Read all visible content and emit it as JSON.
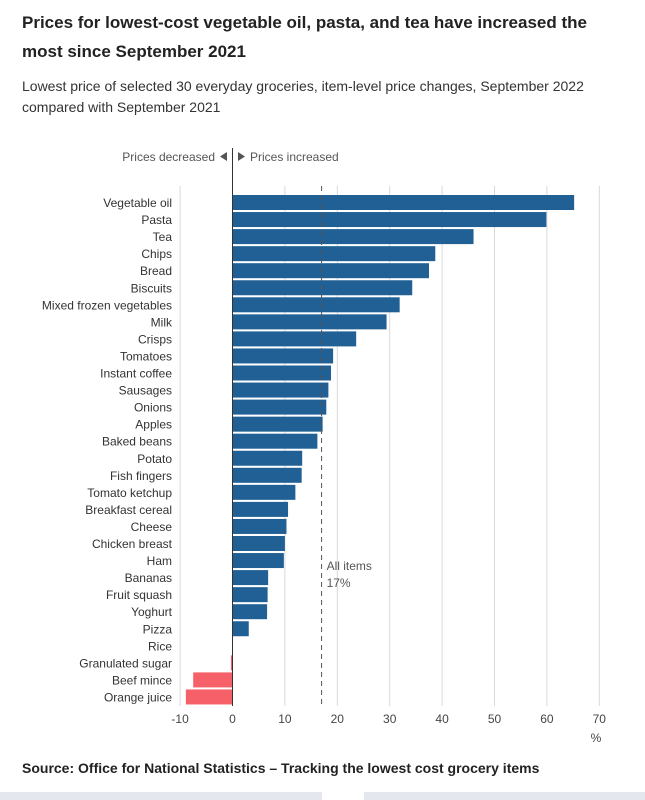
{
  "title": "Prices for lowest-cost vegetable oil, pasta, and tea have increased the most since September 2021",
  "subtitle": "Lowest price of selected 30 everyday groceries, item-level price changes, September 2022 compared with September 2021",
  "source": "Source: Office for National Statistics – Tracking the lowest cost grocery items",
  "chart_data": {
    "type": "bar",
    "orientation": "horizontal",
    "categories": [
      "Vegetable oil",
      "Pasta",
      "Tea",
      "Chips",
      "Bread",
      "Biscuits",
      "Mixed frozen vegetables",
      "Milk",
      "Crisps",
      "Tomatoes",
      "Instant coffee",
      "Sausages",
      "Onions",
      "Apples",
      "Baked beans",
      "Potato",
      "Fish fingers",
      "Tomato ketchup",
      "Breakfast cereal",
      "Cheese",
      "Chicken breast",
      "Ham",
      "Bananas",
      "Fruit squash",
      "Yoghurt",
      "Pizza",
      "Rice",
      "Granulated sugar",
      "Beef mince",
      "Orange juice"
    ],
    "values": [
      65.2,
      59.9,
      46.0,
      38.7,
      37.5,
      34.3,
      31.9,
      29.4,
      23.6,
      19.2,
      18.8,
      18.3,
      17.9,
      17.2,
      16.2,
      13.3,
      13.2,
      12.0,
      10.6,
      10.3,
      10.0,
      9.8,
      6.8,
      6.7,
      6.6,
      3.1,
      0.0,
      -0.3,
      -7.5,
      -8.9
    ],
    "xlim": [
      -10,
      70
    ],
    "xticks": [
      -10,
      0,
      10,
      20,
      30,
      40,
      50,
      60,
      70
    ],
    "xunit": "%",
    "grid": "vertical",
    "reference_line": {
      "value": 17,
      "label": "All items",
      "value_label": "17%"
    },
    "direction_labels": {
      "left": "Prices decreased",
      "right": "Prices increased"
    },
    "colors": {
      "positive": "#206095",
      "negative": "#f66068",
      "gridline": "#d9d9d9",
      "axis": "#333333"
    }
  }
}
